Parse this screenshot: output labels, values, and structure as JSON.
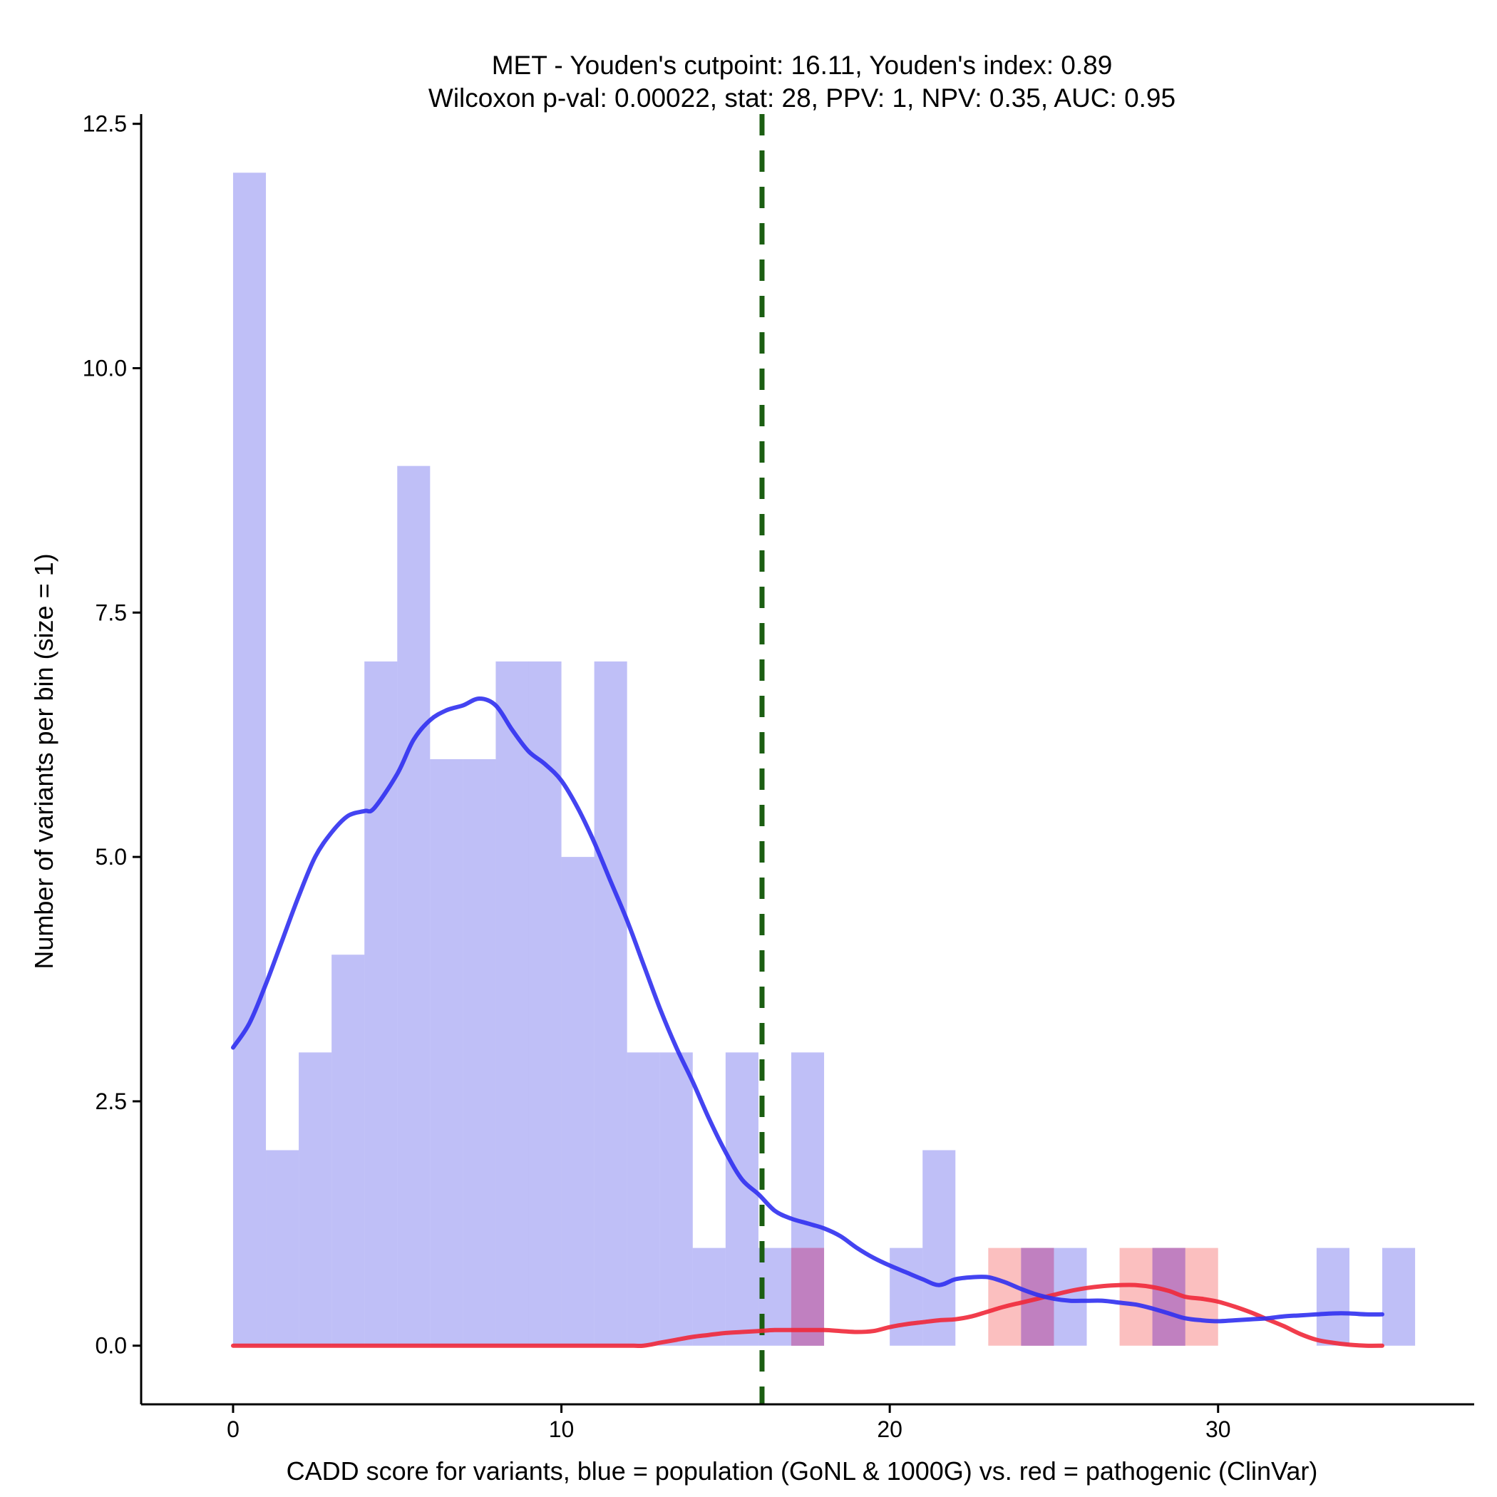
{
  "chart_data": {
    "type": "bar",
    "title": "MET - Youden's cutpoint: 16.11, Youden's index: 0.89",
    "subtitle": "Wilcoxon p-val: 0.00022, stat: 28, PPV: 1, NPV: 0.35, AUC: 0.95",
    "xlabel": "CADD score for variants, blue = population (GoNL & 1000G) vs. red = pathogenic (ClinVar)",
    "ylabel": "Number of variants per bin (size = 1)",
    "xlim": [
      -2.8,
      37.8
    ],
    "ylim": [
      -0.6,
      12.6
    ],
    "x_ticks": [
      0,
      10,
      20,
      30
    ],
    "x_tick_labels": [
      "0",
      "10",
      "20",
      "30"
    ],
    "y_ticks": [
      0,
      2.5,
      5,
      7.5,
      10,
      12.5
    ],
    "y_tick_labels": [
      "0.0",
      "2.5",
      "5.0",
      "7.5",
      "10.0",
      "12.5"
    ],
    "bin_size": 1,
    "cutpoint": 16.11,
    "cutpoint_color": "#1b5e12",
    "series": [
      {
        "name": "population",
        "color": "#8080f0",
        "line_color": "#3030f0",
        "bin_starts": [
          0,
          1,
          2,
          3,
          4,
          5,
          6,
          7,
          8,
          9,
          10,
          11,
          12,
          13,
          14,
          15,
          16,
          17,
          18,
          19,
          20,
          21,
          22,
          23,
          24,
          25,
          26,
          27,
          28,
          29,
          30,
          31,
          32,
          33,
          34,
          35
        ],
        "counts": [
          12,
          2,
          3,
          4,
          7,
          9,
          6,
          6,
          7,
          7,
          5,
          7,
          3,
          3,
          1,
          3,
          1,
          3,
          0,
          0,
          1,
          2,
          0,
          0,
          1,
          1,
          0,
          0,
          1,
          0,
          0,
          0,
          0,
          1,
          0,
          1
        ],
        "density_x": [
          0,
          0.5,
          1,
          1.5,
          2,
          2.5,
          3,
          3.5,
          4,
          4.3,
          5,
          5.5,
          6,
          6.5,
          7,
          7.5,
          8,
          8.5,
          9,
          9.5,
          10,
          10.5,
          11,
          11.5,
          12,
          12.5,
          13,
          13.5,
          14,
          14.5,
          15,
          15.5,
          16,
          16.5,
          17,
          17.5,
          18,
          18.5,
          19,
          19.5,
          20,
          20.5,
          21,
          21.5,
          22,
          22.5,
          23,
          23.5,
          24,
          24.5,
          25,
          25.5,
          26,
          26.5,
          27,
          27.5,
          28,
          28.5,
          29,
          29.5,
          30,
          30.5,
          31,
          31.5,
          32,
          32.5,
          33,
          33.5,
          34,
          34.5,
          35
        ],
        "density_y": [
          3.05,
          3.3,
          3.7,
          4.15,
          4.6,
          5.0,
          5.25,
          5.42,
          5.47,
          5.5,
          5.85,
          6.2,
          6.4,
          6.5,
          6.55,
          6.62,
          6.55,
          6.3,
          6.08,
          5.95,
          5.78,
          5.5,
          5.15,
          4.75,
          4.35,
          3.9,
          3.45,
          3.05,
          2.7,
          2.32,
          1.98,
          1.7,
          1.55,
          1.38,
          1.3,
          1.25,
          1.2,
          1.12,
          1.0,
          0.9,
          0.82,
          0.75,
          0.68,
          0.62,
          0.68,
          0.7,
          0.7,
          0.65,
          0.58,
          0.52,
          0.48,
          0.46,
          0.46,
          0.46,
          0.44,
          0.42,
          0.38,
          0.33,
          0.28,
          0.26,
          0.25,
          0.26,
          0.27,
          0.28,
          0.3,
          0.31,
          0.32,
          0.33,
          0.33,
          0.32,
          0.32
        ]
      },
      {
        "name": "pathogenic",
        "color": "#f88080",
        "line_color": "#f02838",
        "bin_starts": [
          17,
          23,
          24,
          27,
          28,
          29
        ],
        "counts": [
          1,
          1,
          1,
          1,
          1,
          1
        ],
        "density_x": [
          0,
          2,
          4,
          6,
          8,
          10,
          12,
          12.5,
          13,
          13.5,
          14,
          14.5,
          15,
          15.5,
          16,
          16.5,
          17,
          17.5,
          18,
          18.5,
          19,
          19.5,
          20,
          20.5,
          21,
          21.5,
          22,
          22.5,
          23,
          23.5,
          24,
          24.5,
          25,
          25.5,
          26,
          26.5,
          27,
          27.5,
          28,
          28.5,
          29,
          29.5,
          30,
          30.5,
          31,
          31.5,
          32,
          32.5,
          33,
          33.5,
          34,
          34.5,
          35
        ],
        "density_y": [
          0,
          0,
          0,
          0,
          0,
          0,
          0,
          0,
          0.03,
          0.06,
          0.09,
          0.11,
          0.13,
          0.14,
          0.15,
          0.16,
          0.16,
          0.16,
          0.16,
          0.15,
          0.14,
          0.15,
          0.19,
          0.22,
          0.24,
          0.26,
          0.27,
          0.3,
          0.35,
          0.4,
          0.44,
          0.48,
          0.52,
          0.56,
          0.59,
          0.61,
          0.62,
          0.62,
          0.6,
          0.56,
          0.5,
          0.48,
          0.45,
          0.4,
          0.34,
          0.27,
          0.2,
          0.12,
          0.06,
          0.03,
          0.01,
          0,
          0
        ]
      }
    ],
    "overlap_color": "#c080c0"
  }
}
